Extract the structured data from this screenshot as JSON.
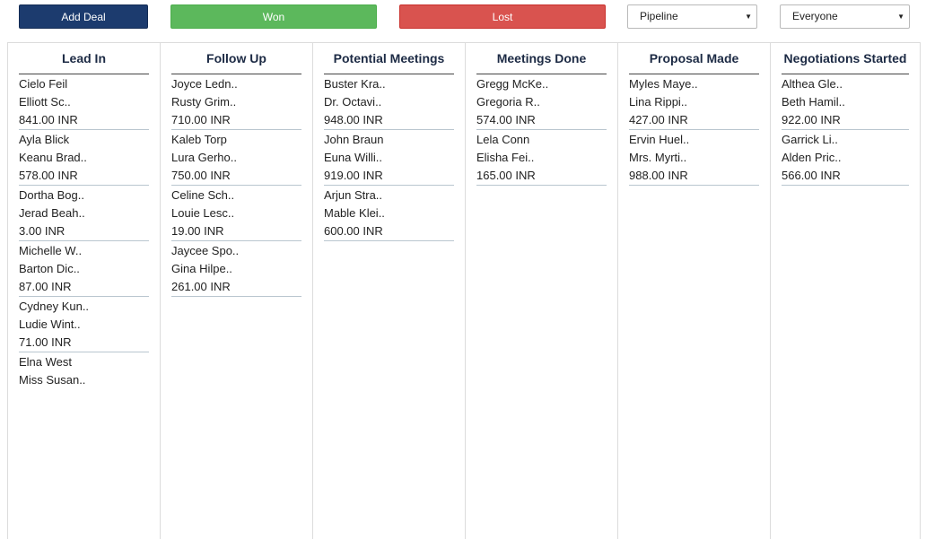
{
  "toolbar": {
    "add_deal_label": "Add Deal",
    "won_label": "Won",
    "lost_label": "Lost",
    "pipeline_select": "Pipeline",
    "owner_select": "Everyone"
  },
  "columns": [
    {
      "title": "Lead In",
      "deals": [
        {
          "person": "Cielo Feil",
          "org": "Elliott Sc..",
          "value": "841.00 INR"
        },
        {
          "person": "Ayla Blick",
          "org": "Keanu Brad..",
          "value": "578.00 INR"
        },
        {
          "person": "Dortha Bog..",
          "org": "Jerad Beah..",
          "value": "3.00 INR"
        },
        {
          "person": "Michelle W..",
          "org": "Barton Dic..",
          "value": "87.00 INR"
        },
        {
          "person": "Cydney Kun..",
          "org": "Ludie Wint..",
          "value": "71.00 INR"
        },
        {
          "person": "Elna West",
          "org": "Miss Susan.."
        }
      ]
    },
    {
      "title": "Follow Up",
      "deals": [
        {
          "person": "Joyce Ledn..",
          "org": "Rusty Grim..",
          "value": "710.00 INR"
        },
        {
          "person": "Kaleb Torp",
          "org": "Lura Gerho..",
          "value": "750.00 INR"
        },
        {
          "person": "Celine Sch..",
          "org": "Louie Lesc..",
          "value": "19.00 INR"
        },
        {
          "person": "Jaycee Spo..",
          "org": "Gina Hilpe..",
          "value": "261.00 INR"
        }
      ]
    },
    {
      "title": "Potential Meetings",
      "deals": [
        {
          "person": "Buster Kra..",
          "org": "Dr. Octavi..",
          "value": "948.00 INR"
        },
        {
          "person": "John Braun",
          "org": "Euna Willi..",
          "value": "919.00 INR"
        },
        {
          "person": "Arjun Stra..",
          "org": "Mable Klei..",
          "value": "600.00 INR"
        }
      ]
    },
    {
      "title": "Meetings Done",
      "deals": [
        {
          "person": "Gregg McKe..",
          "org": "Gregoria R..",
          "value": "574.00 INR"
        },
        {
          "person": "Lela Conn",
          "org": "Elisha Fei..",
          "value": "165.00 INR"
        }
      ]
    },
    {
      "title": "Proposal Made",
      "deals": [
        {
          "person": "Myles Maye..",
          "org": "Lina Rippi..",
          "value": "427.00 INR"
        },
        {
          "person": "Ervin Huel..",
          "org": "Mrs. Myrti..",
          "value": "988.00 INR"
        }
      ]
    },
    {
      "title": "Negotiations Started",
      "deals": [
        {
          "person": "Althea Gle..",
          "org": "Beth Hamil..",
          "value": "922.00 INR"
        },
        {
          "person": "Garrick Li..",
          "org": "Alden Pric..",
          "value": "566.00 INR"
        }
      ]
    }
  ]
}
